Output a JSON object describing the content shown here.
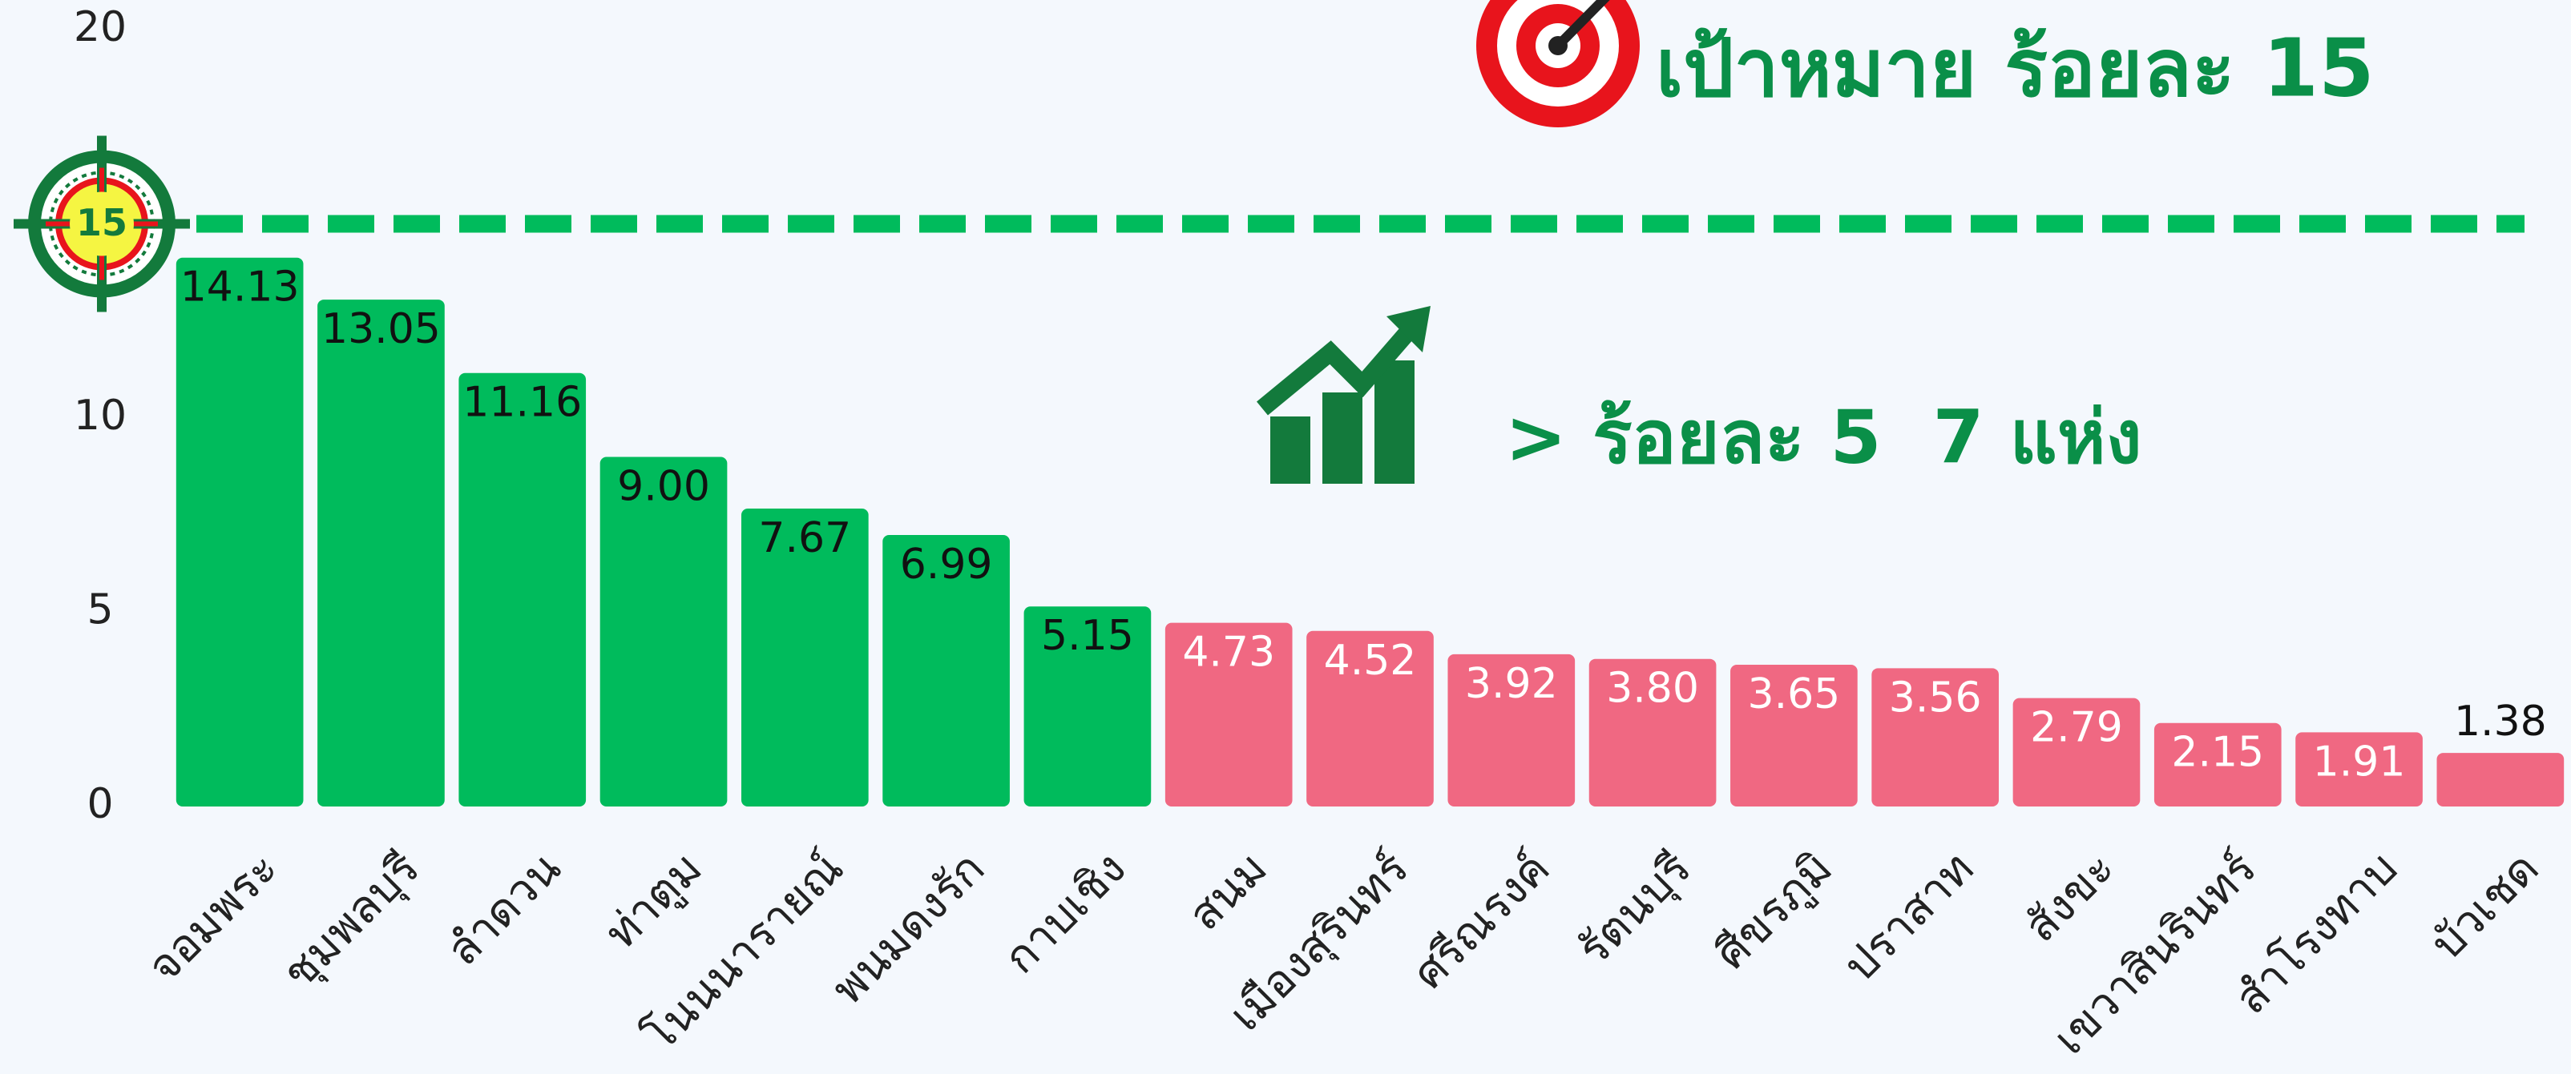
{
  "chart_data": {
    "type": "bar",
    "title": "เป้าหมาย ร้อยละ 15",
    "annotation": "> ร้อยละ 5  7 แห่ง",
    "categories": [
      "จอมพระ",
      "ชุมพลบุรี",
      "ลำดวน",
      "ท่าตูม",
      "โนนนารายณ์",
      "พนมดงรัก",
      "กาบเชิง",
      "สนม",
      "เมืองสุรินทร์",
      "ศรีณรงค์",
      "รัตนบุรี",
      "ศีขรภูมิ",
      "ปราสาท",
      "สังขะ",
      "เขวาสินรินทร์",
      "สำโรงทาบ",
      "บัวเชด"
    ],
    "values": [
      14.13,
      13.05,
      11.16,
      9.0,
      7.67,
      6.99,
      5.15,
      4.73,
      4.52,
      3.92,
      3.8,
      3.65,
      3.56,
      2.79,
      2.15,
      1.91,
      1.38
    ],
    "value_labels": [
      "14.13",
      "13.05",
      "11.16",
      "9.00",
      "7.67",
      "6.99",
      "5.15",
      "4.73",
      "4.52",
      "3.92",
      "3.80",
      "3.65",
      "3.56",
      "2.79",
      "2.15",
      "1.91",
      "1.38"
    ],
    "colors": [
      "#00bb5c",
      "#00bb5c",
      "#00bb5c",
      "#00bb5c",
      "#00bb5c",
      "#00bb5c",
      "#00bb5c",
      "#f06882",
      "#f06882",
      "#f06882",
      "#f06882",
      "#f06882",
      "#f06882",
      "#f06882",
      "#f06882",
      "#f06882",
      "#f06882"
    ],
    "target": 15,
    "ylim": [
      0,
      20
    ],
    "yticks": [
      0,
      5,
      10,
      20
    ],
    "grid": false
  }
}
